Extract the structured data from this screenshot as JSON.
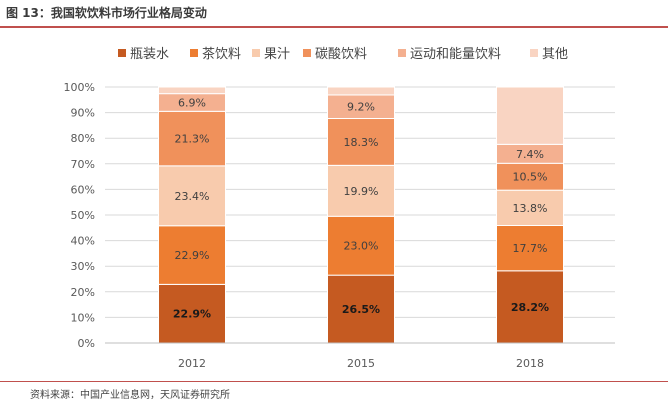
{
  "figure": {
    "title": "图 13：我国软饮料市场行业格局变动",
    "source": "资料来源：中国产业信息网，天风证券研究所"
  },
  "chart_data": {
    "type": "bar",
    "stacked": true,
    "percent": true,
    "categories": [
      "2012",
      "2015",
      "2018"
    ],
    "ylim": [
      0,
      100
    ],
    "yticks": [
      "0%",
      "10%",
      "20%",
      "30%",
      "40%",
      "50%",
      "60%",
      "70%",
      "80%",
      "90%",
      "100%"
    ],
    "legend_position": "top",
    "series": [
      {
        "name": "瓶装水",
        "color": "#c55a21",
        "values": [
          22.9,
          26.5,
          28.2
        ],
        "labels": [
          "22.9%",
          "26.5%",
          "28.2%"
        ]
      },
      {
        "name": "茶饮料",
        "color": "#ed7d31",
        "values": [
          22.9,
          23.0,
          17.7
        ],
        "labels": [
          "22.9%",
          "23.0%",
          "17.7%"
        ]
      },
      {
        "name": "果汁",
        "color": "#f8cbad",
        "values": [
          23.4,
          19.9,
          13.8
        ],
        "labels": [
          "23.4%",
          "19.9%",
          "13.8%"
        ]
      },
      {
        "name": "碳酸饮料",
        "color": "#f0915b",
        "values": [
          21.3,
          18.3,
          10.5
        ],
        "labels": [
          "21.3%",
          "18.3%",
          "10.5%"
        ]
      },
      {
        "name": "运动和能量饮料",
        "color": "#f4b090",
        "values": [
          6.9,
          9.2,
          7.4
        ],
        "labels": [
          "6.9%",
          "9.2%",
          "7.4%"
        ]
      },
      {
        "name": "其他",
        "color": "#f9d4c2",
        "values": [
          2.6,
          3.1,
          22.4
        ],
        "labels": [
          "",
          "",
          ""
        ]
      }
    ]
  }
}
